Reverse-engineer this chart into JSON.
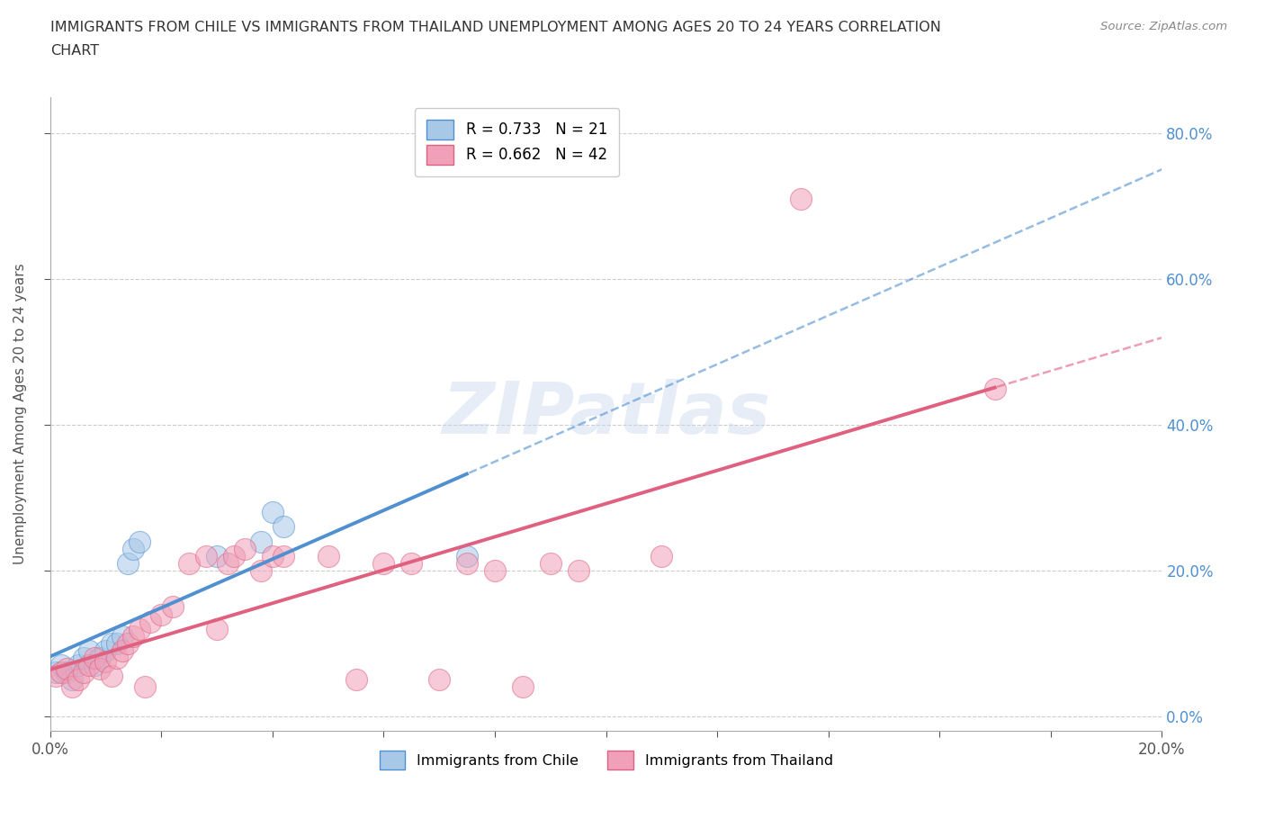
{
  "title_line1": "IMMIGRANTS FROM CHILE VS IMMIGRANTS FROM THAILAND UNEMPLOYMENT AMONG AGES 20 TO 24 YEARS CORRELATION",
  "title_line2": "CHART",
  "source": "Source: ZipAtlas.com",
  "ylabel": "Unemployment Among Ages 20 to 24 years",
  "chile_color": "#a8c8e8",
  "thailand_color": "#f0a0b8",
  "chile_line_color": "#5090d0",
  "thailand_line_color": "#e06080",
  "chile_R": "0.733",
  "chile_N": "21",
  "thailand_R": "0.662",
  "thailand_N": "42",
  "chile_points": [
    [
      0.001,
      0.06
    ],
    [
      0.002,
      0.07
    ],
    [
      0.003,
      0.06
    ],
    [
      0.004,
      0.05
    ],
    [
      0.005,
      0.07
    ],
    [
      0.006,
      0.08
    ],
    [
      0.007,
      0.09
    ],
    [
      0.008,
      0.07
    ],
    [
      0.009,
      0.08
    ],
    [
      0.01,
      0.09
    ],
    [
      0.011,
      0.1
    ],
    [
      0.012,
      0.1
    ],
    [
      0.013,
      0.11
    ],
    [
      0.014,
      0.21
    ],
    [
      0.015,
      0.23
    ],
    [
      0.016,
      0.24
    ],
    [
      0.03,
      0.22
    ],
    [
      0.038,
      0.24
    ],
    [
      0.04,
      0.28
    ],
    [
      0.042,
      0.26
    ],
    [
      0.075,
      0.22
    ]
  ],
  "thailand_points": [
    [
      0.001,
      0.055
    ],
    [
      0.002,
      0.06
    ],
    [
      0.003,
      0.065
    ],
    [
      0.004,
      0.04
    ],
    [
      0.005,
      0.05
    ],
    [
      0.006,
      0.06
    ],
    [
      0.007,
      0.07
    ],
    [
      0.008,
      0.08
    ],
    [
      0.009,
      0.065
    ],
    [
      0.01,
      0.075
    ],
    [
      0.011,
      0.055
    ],
    [
      0.012,
      0.08
    ],
    [
      0.013,
      0.09
    ],
    [
      0.014,
      0.1
    ],
    [
      0.015,
      0.11
    ],
    [
      0.016,
      0.12
    ],
    [
      0.017,
      0.04
    ],
    [
      0.018,
      0.13
    ],
    [
      0.02,
      0.14
    ],
    [
      0.022,
      0.15
    ],
    [
      0.025,
      0.21
    ],
    [
      0.028,
      0.22
    ],
    [
      0.03,
      0.12
    ],
    [
      0.032,
      0.21
    ],
    [
      0.033,
      0.22
    ],
    [
      0.035,
      0.23
    ],
    [
      0.038,
      0.2
    ],
    [
      0.04,
      0.22
    ],
    [
      0.042,
      0.22
    ],
    [
      0.05,
      0.22
    ],
    [
      0.055,
      0.05
    ],
    [
      0.06,
      0.21
    ],
    [
      0.065,
      0.21
    ],
    [
      0.07,
      0.05
    ],
    [
      0.075,
      0.21
    ],
    [
      0.08,
      0.2
    ],
    [
      0.085,
      0.04
    ],
    [
      0.09,
      0.21
    ],
    [
      0.095,
      0.2
    ],
    [
      0.11,
      0.22
    ],
    [
      0.135,
      0.71
    ],
    [
      0.17,
      0.45
    ]
  ],
  "xlim": [
    0.0,
    0.2
  ],
  "ylim": [
    -0.02,
    0.85
  ],
  "background_color": "#ffffff",
  "grid_color": "#cccccc",
  "chile_line_xstart": 0.0,
  "chile_line_xend_solid": 0.085,
  "thailand_line_xstart": 0.0,
  "thailand_line_xend_solid": 0.17
}
